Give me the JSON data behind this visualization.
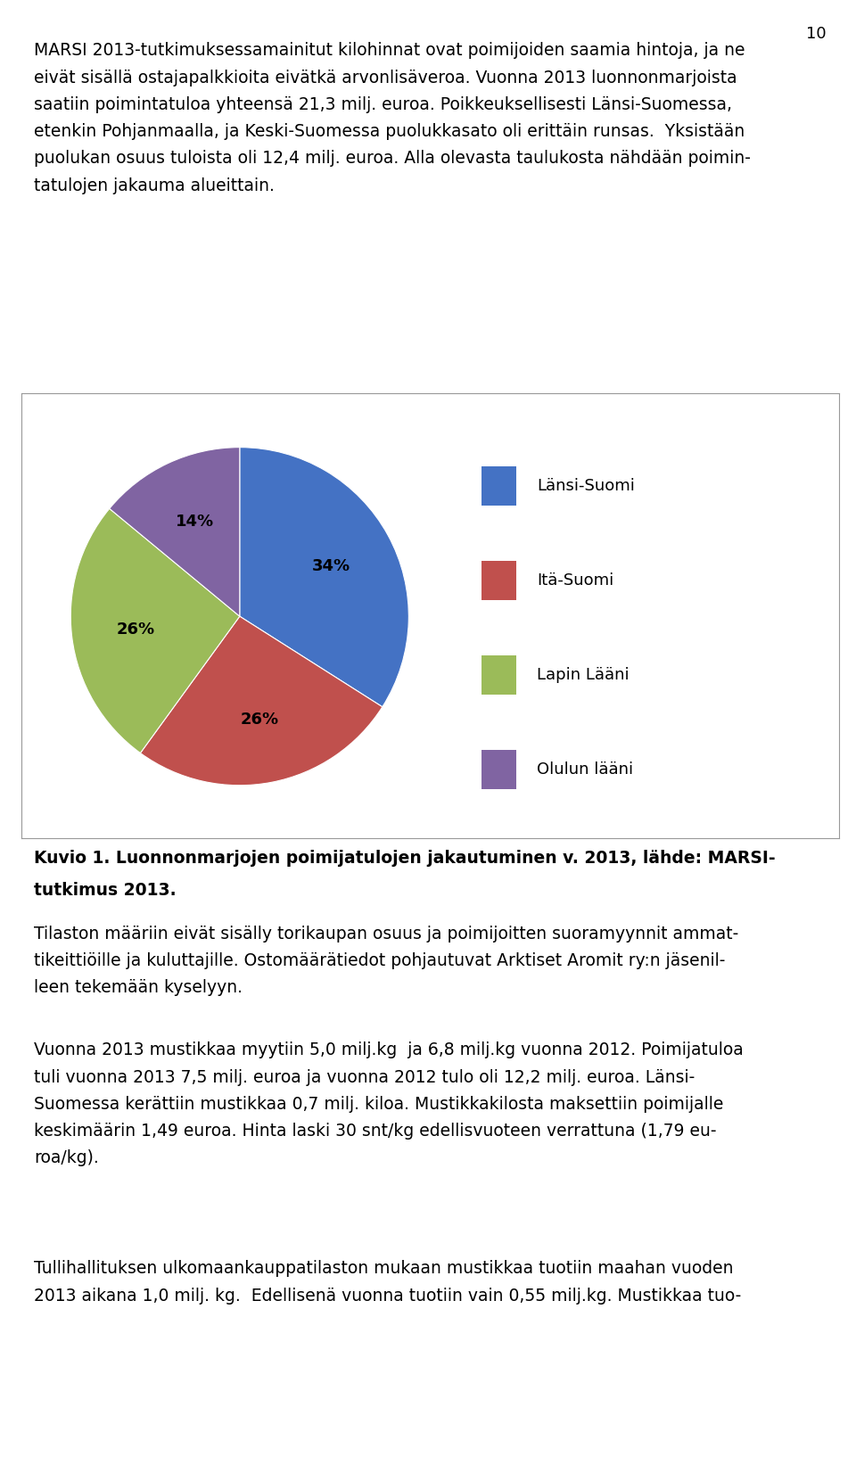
{
  "page_number": "10",
  "paragraphs": [
    "MARSI 2013-tutkimuksessamainitut kilohinnat ovat poimijoiden saamia hintoja, ja ne\neivät sisällä ostajapalkkioita eivätkä arvonlisäveroa. Vuonna 2013 luonnonmarjoista\nsaatiin poimintatuloa yhteensä 21,3 milj. euroa. Poikkeuksellisesti Länsi-Suomessa,\netenkin Pohjanmaalla, ja Keski-Suomessa puolukkasato oli erittäin runsas.  Yksistään\npuolukan osuus tuloista oli 12,4 milj. euroa. Alla olevasta taulukosta nähdään poimin-\ntatulojen jakauma alueittain.",
    "Tilaston määriin eivät sisälly torikaupan osuus ja poimijoitten suoramyynnit ammat-\ntikeittiöille ja kuluttajille. Ostomäärätiedot pohjautuvat Arktiset Aromit ry:n jäsenil-\nleen tekemään kyselyyn.",
    "Vuonna 2013 mustikkaa myytiin 5,0 milj.kg  ja 6,8 milj.kg vuonna 2012. Poimijatuloa\ntuli vuonna 2013 7,5 milj. euroa ja vuonna 2012 tulo oli 12,2 milj. euroa. Länsi-\nSuomessa kerättiin mustikkaa 0,7 milj. kiloa. Mustikkakilosta maksettiin poimijalle\nkeskimäärin 1,49 euroa. Hinta laski 30 snt/kg edellisvuoteen verrattuna (1,79 eu-\nroa/kg).",
    "Tullihallituksen ulkomaankauppatilaston mukaan mustikkaa tuotiin maahan vuoden\n2013 aikana 1,0 milj. kg.  Edellisenä vuonna tuotiin vain 0,55 milj.kg. Mustikkaa tuo-"
  ],
  "caption_line1": "Kuvio 1. Luonnonmarjojen poimijatulojen jakautuminen v. 2013, lähde: MARSI-",
  "caption_line2": "tutkimus 2013.",
  "pie_values": [
    34,
    26,
    26,
    14
  ],
  "pie_labels": [
    "Länsi-Suomi",
    "Itä-Suomi",
    "Lapin Lääni",
    "Olulun lääni"
  ],
  "pie_colors": [
    "#4472C4",
    "#C0504D",
    "#9BBB59",
    "#8064A2"
  ],
  "pie_pct_labels": [
    "34%",
    "26%",
    "26%",
    "14%"
  ],
  "text_color": "#000000",
  "background_color": "#ffffff",
  "font_size_body": 13.5,
  "font_size_caption": 13.5,
  "font_size_pct": 13,
  "font_size_legend": 13,
  "font_size_page": 13
}
